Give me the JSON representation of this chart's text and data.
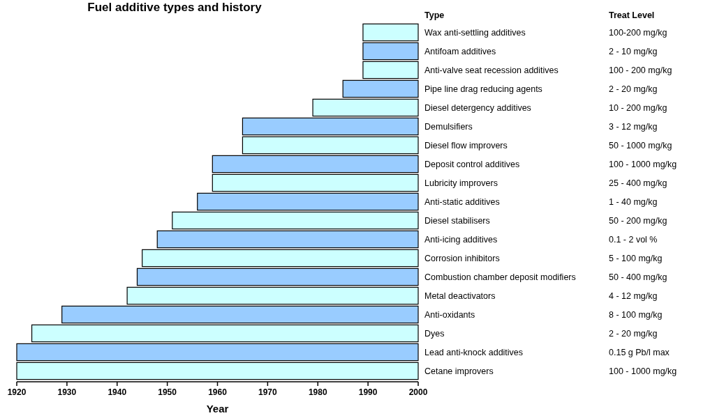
{
  "chart_data": {
    "type": "bar",
    "orientation": "horizontal",
    "title": "Fuel additive types and history",
    "xlabel": "Year",
    "categories": [
      "Wax anti-settling additives",
      "Antifoam additives",
      "Anti-valve seat recession additives",
      "Pipe line drag reducing agents",
      "Diesel detergency additives",
      "Demulsifiers",
      "Diesel flow improvers",
      "Deposit control additives",
      "Lubricity improvers",
      "Anti-static additives",
      "Diesel stabilisers",
      "Anti-icing additives",
      "Corrosion inhibitors",
      "Combustion chamber deposit modifiers",
      "Metal deactivators",
      "Anti-oxidants",
      "Dyes",
      "Lead anti-knock additives",
      "Cetane improvers"
    ],
    "base": [
      1989,
      1989,
      1989,
      1985,
      1979,
      1965,
      1965,
      1959,
      1959,
      1956,
      1951,
      1948,
      1945,
      1944,
      1942,
      1929,
      1923,
      1920,
      1920
    ],
    "values": [
      11,
      11,
      11,
      15,
      21,
      35,
      35,
      41,
      41,
      44,
      49,
      52,
      55,
      56,
      58,
      71,
      77,
      80,
      80
    ],
    "colors": [
      "#ccffff",
      "#99ccff",
      "#ccffff",
      "#99ccff",
      "#ccffff",
      "#99ccff",
      "#ccffff",
      "#99ccff",
      "#ccffff",
      "#99ccff",
      "#ccffff",
      "#99ccff",
      "#ccffff",
      "#99ccff",
      "#ccffff",
      "#99ccff",
      "#ccffff",
      "#99ccff",
      "#ccffff"
    ],
    "xlim": [
      1920,
      2000
    ],
    "xticks": [
      1920,
      1930,
      1940,
      1950,
      1960,
      1970,
      1980,
      1990,
      2000
    ],
    "annotations": [
      "Type",
      "Treat Level",
      "100-200 mg/kg",
      "2 - 10 mg/kg",
      "100 - 200 mg/kg",
      "2 - 20 mg/kg",
      "10 - 200 mg/kg",
      "3 - 12 mg/kg",
      "50 - 1000 mg/kg",
      "100 - 1000 mg/kg",
      "25 - 400 mg/kg",
      "1 - 40 mg/kg",
      "50 - 200 mg/kg",
      "0.1 - 2 vol %",
      "5 - 100 mg/kg",
      "50 - 400 mg/kg",
      "4 - 12 mg/kg",
      "8 - 100 mg/kg",
      "2 - 20 mg/kg",
      "0.15 g Pb/l max",
      "100 - 1000 mg/kg"
    ]
  }
}
